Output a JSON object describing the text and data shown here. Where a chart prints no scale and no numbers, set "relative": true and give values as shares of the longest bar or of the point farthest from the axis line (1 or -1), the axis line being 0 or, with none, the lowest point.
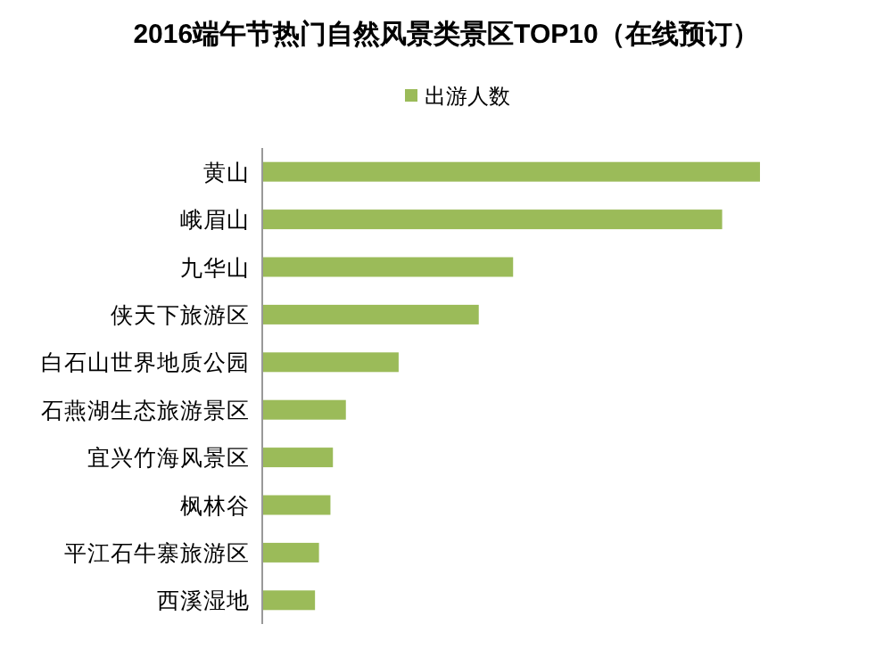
{
  "chart_data": {
    "type": "bar",
    "orientation": "horizontal",
    "relative": true,
    "title": "2016端午节热门自然风景类景区TOP10（在线预订）",
    "categories": [
      "黄山",
      "峨眉山",
      "九华山",
      "侠天下旅游区",
      "白石山世界地质公园",
      "石燕湖生态旅游景区",
      "宜兴竹海风景区",
      "枫林谷",
      "平江石牛寨旅游区",
      "西溪湿地"
    ],
    "series": [
      {
        "name": "出游人数",
        "color": "#9bbb59",
        "values": [
          1,
          0.924,
          0.504,
          0.435,
          0.274,
          0.168,
          0.142,
          0.137,
          0.114,
          0.106
        ]
      }
    ],
    "legend": "top"
  }
}
